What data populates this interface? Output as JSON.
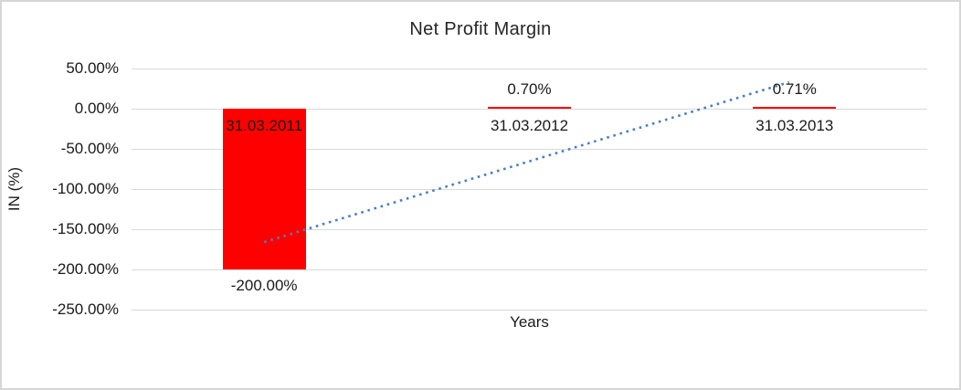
{
  "chart_data": {
    "type": "bar",
    "title": "Net Profit Margin",
    "xlabel": "Years",
    "ylabel": "IN (%)",
    "categories": [
      "31.03.2011",
      "31.03.2012",
      "31.03.2013"
    ],
    "values": [
      -200.0,
      0.7,
      0.71
    ],
    "data_labels": [
      "-200.00%",
      "0.70%",
      "0.71%"
    ],
    "yticks": [
      {
        "value": 50,
        "label": "50.00%"
      },
      {
        "value": 0,
        "label": "0.00%"
      },
      {
        "value": -50,
        "label": "-50.00%"
      },
      {
        "value": -100,
        "label": "-100.00%"
      },
      {
        "value": -150,
        "label": "-150.00%"
      },
      {
        "value": -200,
        "label": "-200.00%"
      },
      {
        "value": -250,
        "label": "-250.00%"
      }
    ],
    "ylim": [
      -250,
      50
    ],
    "grid": true,
    "legend": "none",
    "bar_color": "#ff0000",
    "label_color": "#1a1a1a",
    "gridline_color": "#d9d9d9",
    "trendline": {
      "style": "dotted",
      "shape": "linear",
      "color": "#4a7ebc",
      "start_value_pct": -166,
      "end_value_pct": 33
    }
  }
}
